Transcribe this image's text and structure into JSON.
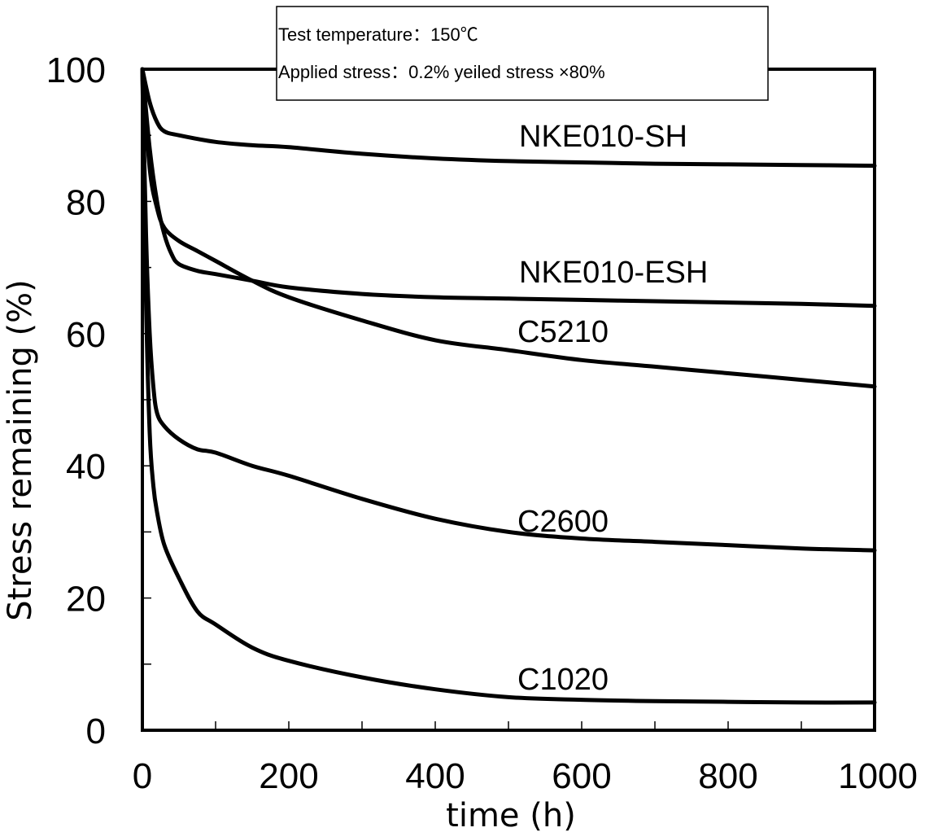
{
  "chart_data": {
    "type": "line",
    "title": "",
    "xlabel": "time (h)",
    "ylabel": "Stress remaining (%)",
    "xlim": [
      0,
      1000
    ],
    "ylim": [
      0,
      100
    ],
    "x_ticks": [
      0,
      200,
      400,
      600,
      800,
      1000
    ],
    "y_ticks": [
      0,
      20,
      40,
      60,
      80,
      100
    ],
    "x_minor_ticks": [
      100,
      300,
      500,
      700,
      900
    ],
    "y_minor_ticks": [
      10,
      30,
      50,
      70,
      90
    ],
    "grid": false,
    "annotations": [
      "Test temperature：150℃",
      "Applied stress：0.2% yeiled stress  ×80%"
    ],
    "series": [
      {
        "name": "NKE010-SH",
        "x": [
          0,
          10,
          20,
          30,
          50,
          100,
          150,
          200,
          300,
          400,
          500,
          600,
          700,
          800,
          900,
          1000
        ],
        "y": [
          100,
          95,
          92,
          90.6,
          90,
          89,
          88.5,
          88.2,
          87.2,
          86.5,
          86.1,
          85.9,
          85.7,
          85.6,
          85.5,
          85.4
        ]
      },
      {
        "name": "NKE010-ESH",
        "x": [
          0,
          10,
          20,
          30,
          40,
          50,
          75,
          100,
          150,
          200,
          300,
          400,
          500,
          600,
          700,
          800,
          900,
          1000
        ],
        "y": [
          100,
          88,
          80,
          75,
          72,
          70.5,
          69.5,
          69,
          68,
          67,
          66,
          65.5,
          65.3,
          65.1,
          64.9,
          64.7,
          64.5,
          64.2
        ]
      },
      {
        "name": "C5210",
        "x": [
          0,
          10,
          20,
          30,
          50,
          75,
          100,
          150,
          200,
          300,
          400,
          500,
          600,
          700,
          800,
          900,
          1000
        ],
        "y": [
          100,
          85,
          79,
          76,
          74,
          72.5,
          71,
          68,
          65.5,
          62,
          59,
          57.5,
          56,
          55,
          54,
          53,
          52
        ]
      },
      {
        "name": "C2600",
        "x": [
          0,
          5,
          10,
          15,
          20,
          30,
          50,
          75,
          100,
          150,
          200,
          300,
          400,
          500,
          600,
          700,
          800,
          900,
          1000
        ],
        "y": [
          100,
          75,
          60,
          52,
          48,
          46,
          44,
          42.5,
          42,
          40,
          38.5,
          35,
          32,
          30,
          29,
          28.5,
          28,
          27.5,
          27.2
        ]
      },
      {
        "name": "C1020",
        "x": [
          0,
          5,
          10,
          15,
          20,
          30,
          50,
          75,
          100,
          150,
          200,
          300,
          400,
          500,
          600,
          700,
          800,
          900,
          1000
        ],
        "y": [
          100,
          65,
          45,
          37,
          33,
          28,
          23,
          18,
          16,
          12.5,
          10.5,
          8,
          6.2,
          5,
          4.6,
          4.4,
          4.3,
          4.2,
          4.2
        ]
      }
    ]
  }
}
